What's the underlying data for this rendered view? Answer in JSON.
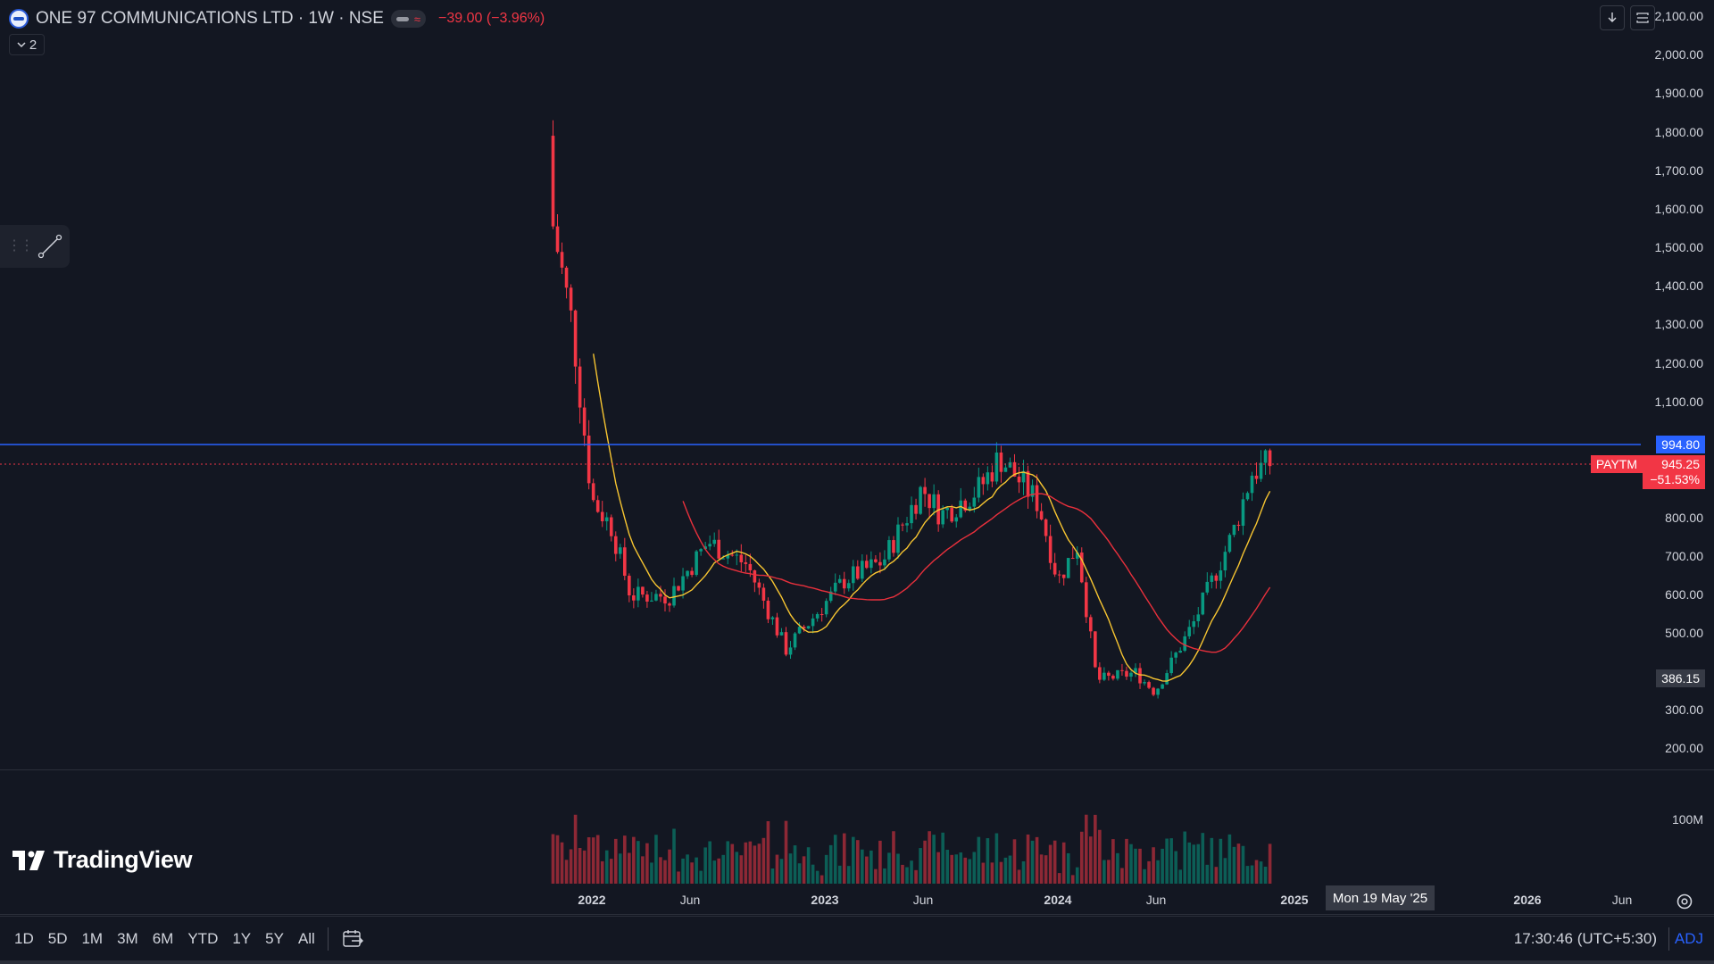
{
  "header": {
    "symbol_title": "ONE 97 COMMUNICATIONS LTD · 1W · NSE",
    "change_text": "−39.00 (−3.96%)",
    "collapse_count": "2"
  },
  "price_axis": {
    "labels": [
      "2,100.00",
      "2,000.00",
      "1,900.00",
      "1,800.00",
      "1,700.00",
      "1,600.00",
      "1,500.00",
      "1,400.00",
      "1,300.00",
      "1,200.00",
      "1,100.00",
      "800.00",
      "700.00",
      "600.00",
      "500.00",
      "300.00",
      "200.00"
    ],
    "line_price": "994.80",
    "ticker_tag": "PAYTM",
    "last_price": "945.25",
    "last_change": "−51.53%",
    "crosshair_price": "386.15",
    "volume_label": "100M"
  },
  "time_axis": {
    "labels": [
      {
        "text": "2022",
        "major": true
      },
      {
        "text": "Jun",
        "major": false
      },
      {
        "text": "2023",
        "major": true
      },
      {
        "text": "Jun",
        "major": false
      },
      {
        "text": "2024",
        "major": true
      },
      {
        "text": "Jun",
        "major": false
      },
      {
        "text": "2025",
        "major": true
      },
      {
        "text": "2026",
        "major": true
      },
      {
        "text": "Jun",
        "major": false
      }
    ],
    "crosshair_date": "Mon 19 May '25"
  },
  "branding": {
    "logo_text": "TradingView"
  },
  "bottom_bar": {
    "timeframes": [
      "1D",
      "5D",
      "1M",
      "3M",
      "6M",
      "YTD",
      "1Y",
      "5Y",
      "All"
    ],
    "clock": "17:30:46 (UTC+5:30)",
    "adj_label": "ADJ"
  },
  "colors": {
    "background": "#131722",
    "up": "#089981",
    "down": "#f23645",
    "horizontal_line": "#2962ff",
    "ma_fast": "#f7c531",
    "ma_slow": "#e8303c"
  },
  "icons": [
    "download-icon",
    "fullscreen-icon",
    "trend-line-icon",
    "drag-handle-icon",
    "calendar-range-icon",
    "settings-icon",
    "chevron-down-icon",
    "exchange-logo-icon"
  ],
  "chart_data": {
    "type": "candlestick",
    "interval": "1W",
    "y_scale": "linear",
    "ylim": [
      150,
      2150
    ],
    "x_range": [
      "2021-11",
      "2026-08"
    ],
    "horizontal_line": 994.8,
    "ohlc_anchor_closes": [
      {
        "date": "2021-11",
        "close": 1560
      },
      {
        "date": "2021-12",
        "close": 1300
      },
      {
        "date": "2022-01",
        "close": 850
      },
      {
        "date": "2022-02",
        "close": 780
      },
      {
        "date": "2022-03",
        "close": 600
      },
      {
        "date": "2022-05",
        "close": 600
      },
      {
        "date": "2022-07",
        "close": 740
      },
      {
        "date": "2022-09",
        "close": 680
      },
      {
        "date": "2022-11",
        "close": 460
      },
      {
        "date": "2022-12",
        "close": 520
      },
      {
        "date": "2023-02",
        "close": 640
      },
      {
        "date": "2023-04",
        "close": 690
      },
      {
        "date": "2023-06",
        "close": 880
      },
      {
        "date": "2023-07",
        "close": 810
      },
      {
        "date": "2023-09",
        "close": 880
      },
      {
        "date": "2023-10",
        "close": 960
      },
      {
        "date": "2023-12",
        "close": 840
      },
      {
        "date": "2024-01",
        "close": 640
      },
      {
        "date": "2024-02",
        "close": 730
      },
      {
        "date": "2024-03",
        "close": 380
      },
      {
        "date": "2024-05",
        "close": 400
      },
      {
        "date": "2024-06",
        "close": 350
      },
      {
        "date": "2024-08",
        "close": 530
      },
      {
        "date": "2024-10",
        "close": 760
      },
      {
        "date": "2024-11",
        "close": 920
      },
      {
        "date": "2024-12",
        "close": 945.25
      }
    ],
    "moving_averages": [
      {
        "name": "MA fast",
        "color": "#f7c531"
      },
      {
        "name": "MA slow",
        "color": "#e8303c"
      }
    ],
    "volume_axis_label": "100M"
  }
}
